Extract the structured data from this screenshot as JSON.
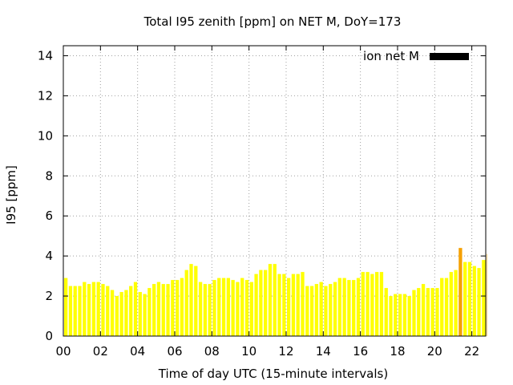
{
  "chart_data": {
    "type": "bar",
    "title": "Total I95 zenith [ppm] on NET M, DoY=173",
    "xlabel": "Time of day UTC (15-minute intervals)",
    "ylabel": "I95 [ppm]",
    "xlim": [
      0,
      22.75
    ],
    "ylim": [
      0,
      14.5
    ],
    "x_ticks": [
      "00",
      "02",
      "04",
      "06",
      "08",
      "10",
      "12",
      "14",
      "16",
      "18",
      "20",
      "22"
    ],
    "x_tick_values": [
      0,
      2,
      4,
      6,
      8,
      10,
      12,
      14,
      16,
      18,
      20,
      22
    ],
    "y_ticks": [
      "0",
      "2",
      "4",
      "6",
      "8",
      "10",
      "12",
      "14"
    ],
    "y_tick_values": [
      0,
      2,
      4,
      6,
      8,
      10,
      12,
      14
    ],
    "grid": true,
    "legend": {
      "label": "ion net M",
      "placement": "top-right",
      "color": "#000000"
    },
    "bar_interval_hours": 0.25,
    "bar_color": "#ffff00",
    "highlight_color": "#f5a000",
    "highlight_threshold": 4,
    "series": [
      {
        "values": [
          2.9,
          2.5,
          2.5,
          2.5,
          2.7,
          2.6,
          2.7,
          2.7,
          2.6,
          2.5,
          2.3,
          2.0,
          2.2,
          2.3,
          2.5,
          2.7,
          2.2,
          2.1,
          2.4,
          2.6,
          2.7,
          2.6,
          2.6,
          2.8,
          2.8,
          2.9,
          3.3,
          3.6,
          3.5,
          2.7,
          2.6,
          2.6,
          2.8,
          2.9,
          2.9,
          2.9,
          2.8,
          2.7,
          2.9,
          2.8,
          2.7,
          3.1,
          3.3,
          3.3,
          3.6,
          3.6,
          3.1,
          3.1,
          2.9,
          3.1,
          3.1,
          3.2,
          2.5,
          2.5,
          2.6,
          2.7,
          2.5,
          2.6,
          2.7,
          2.9,
          2.9,
          2.8,
          2.8,
          2.9,
          3.2,
          3.2,
          3.1,
          3.2,
          3.2,
          2.4,
          2.0,
          2.1,
          2.1,
          2.1,
          2.0,
          2.3,
          2.4,
          2.6,
          2.4,
          2.4,
          2.4,
          2.9,
          2.9,
          3.2,
          3.3,
          4.4,
          3.7,
          3.7,
          3.5,
          3.4,
          3.8,
          4.1
        ]
      }
    ]
  }
}
